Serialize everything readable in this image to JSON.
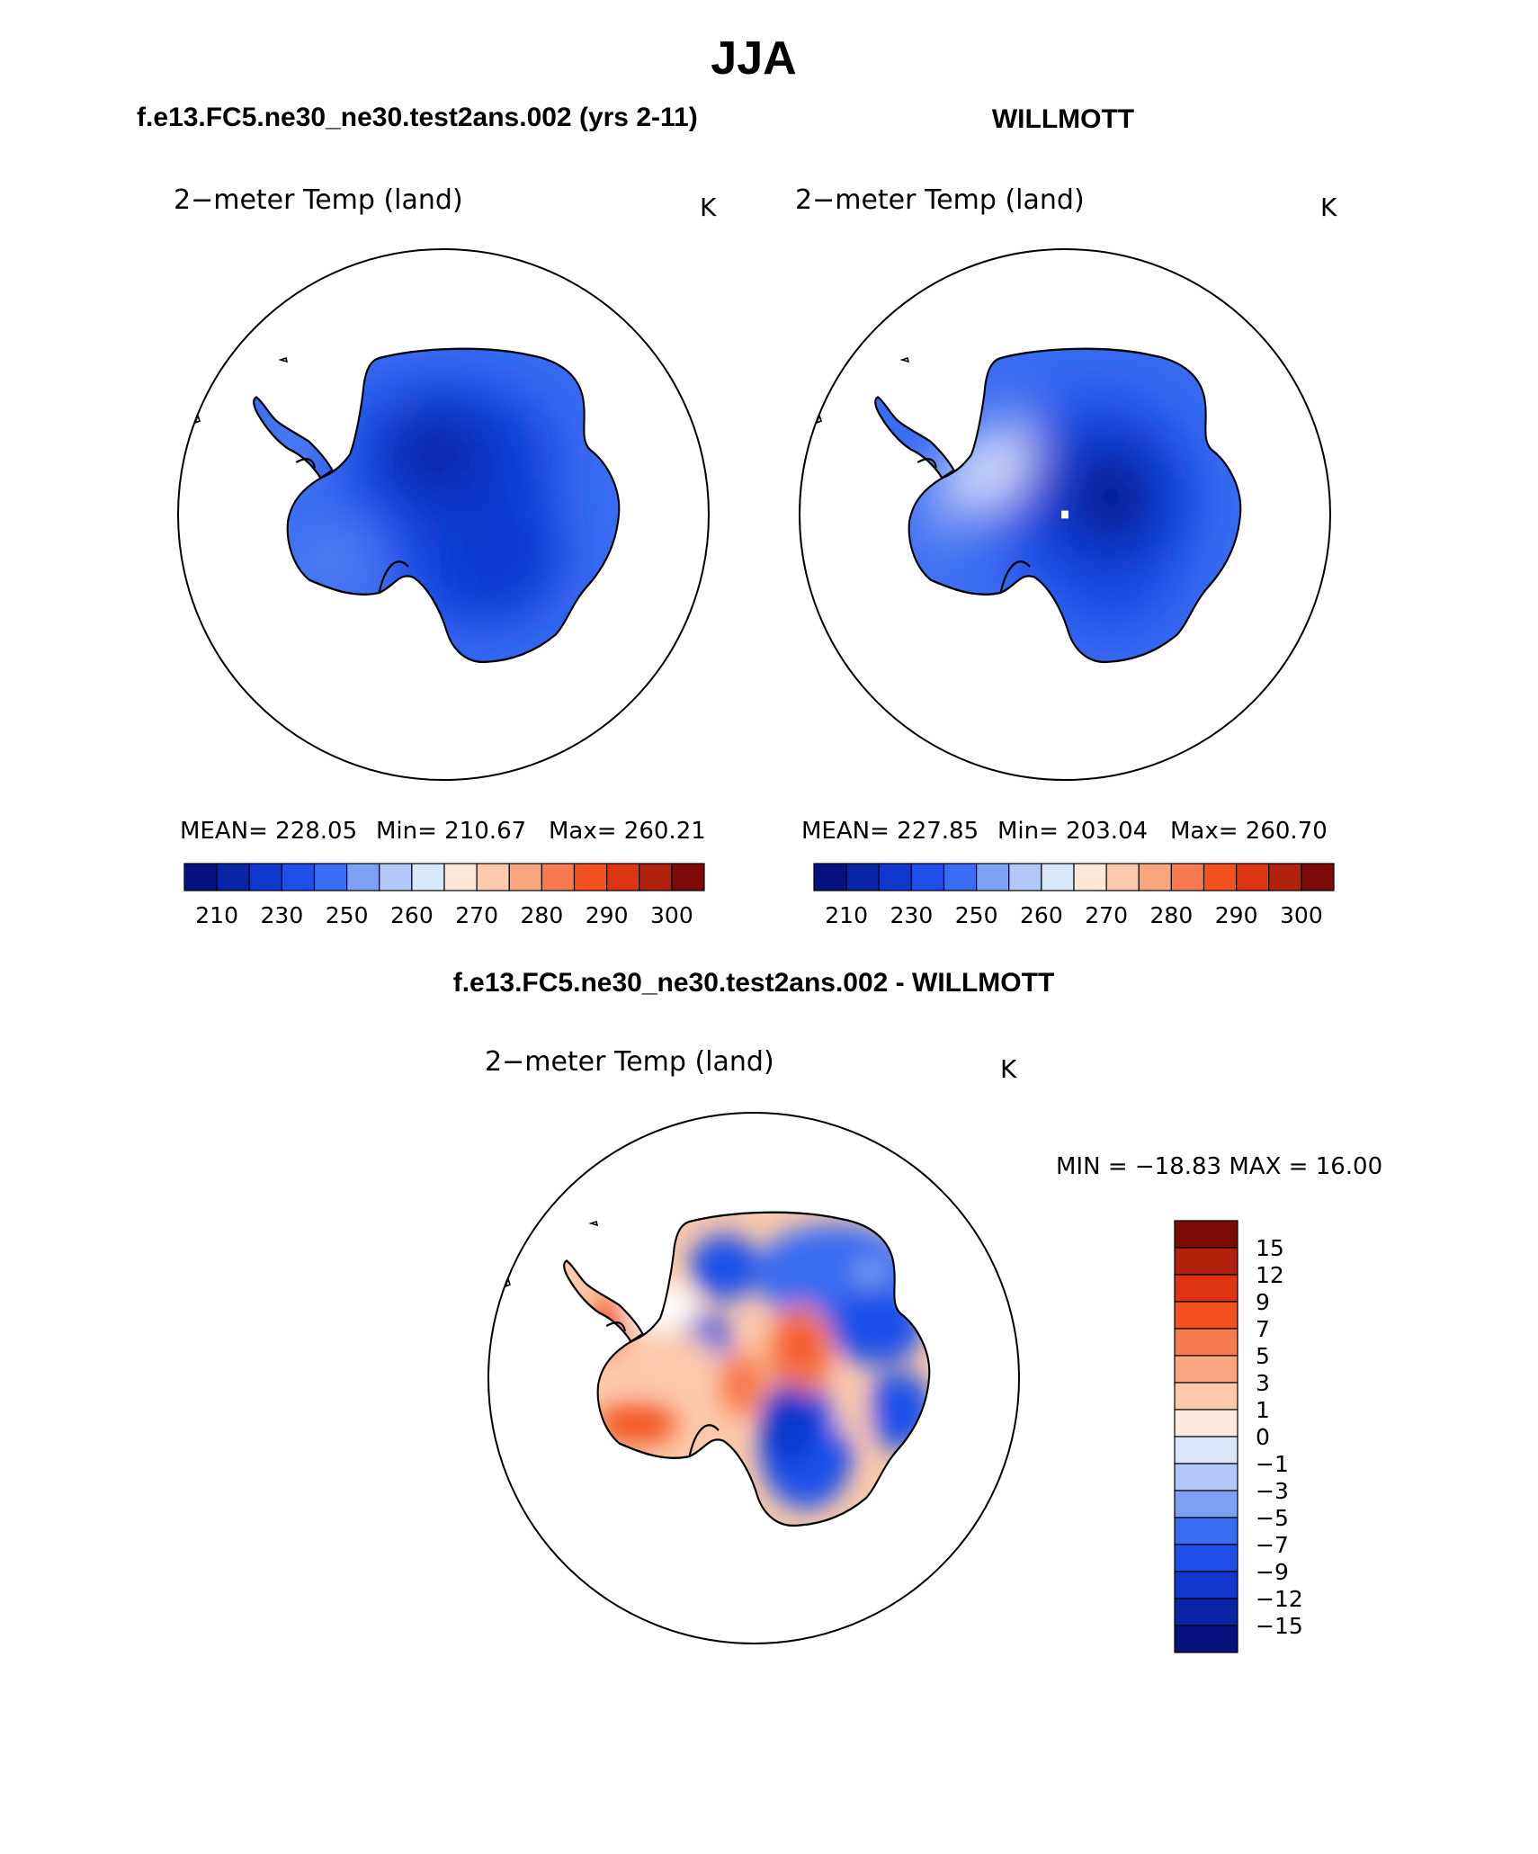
{
  "figure": {
    "season": "JJA",
    "left_header": "f.e13.FC5.ne30_ne30.test2ans.002 (yrs 2-11)",
    "right_header": "WILLMOTT",
    "diff_header": "f.e13.FC5.ne30_ne30.test2ans.002 - WILLMOTT"
  },
  "colors": {
    "abs_palette": [
      "#06137f",
      "#0a24a6",
      "#0f37cc",
      "#1e4fe8",
      "#3a6cf2",
      "#7da0f5",
      "#b2c8f8",
      "#d9e7fb",
      "#fde8d8",
      "#fcc9ac",
      "#f9a57f",
      "#f77b4e",
      "#f3521f",
      "#dd3411",
      "#b3220c",
      "#7e0a08"
    ],
    "diff_palette": [
      "#06137f",
      "#0a24a6",
      "#0f37cc",
      "#1e4fe8",
      "#3a6cf2",
      "#7da0f5",
      "#b2c8f8",
      "#d9e7fb",
      "#fdebdf",
      "#fcc9ac",
      "#f9a57f",
      "#f77b4e",
      "#f3521f",
      "#dd3411",
      "#b3220c",
      "#7e0a08"
    ],
    "land_outline": "#000000"
  },
  "chart_data": [
    {
      "type": "heatmap",
      "panel": "model",
      "title": "2−meter Temp (land)",
      "units": "K",
      "projection": "south-polar-stereographic",
      "stats": {
        "mean_label": "MEAN=  228.05",
        "min_label": "Min=  210.67",
        "max_label": "Max=  260.21"
      },
      "mean": 228.05,
      "min": 210.67,
      "max": 260.21,
      "colorbar_ticks": [
        "210",
        "230",
        "250",
        "260",
        "270",
        "280",
        "290",
        "300"
      ],
      "colorbar_orientation": "horizontal"
    },
    {
      "type": "heatmap",
      "panel": "observations",
      "title": "2−meter Temp (land)",
      "units": "K",
      "projection": "south-polar-stereographic",
      "stats": {
        "mean_label": "MEAN=  227.85",
        "min_label": "Min=  203.04",
        "max_label": "Max=  260.70"
      },
      "mean": 227.85,
      "min": 203.04,
      "max": 260.7,
      "colorbar_ticks": [
        "210",
        "230",
        "250",
        "260",
        "270",
        "280",
        "290",
        "300"
      ],
      "colorbar_orientation": "horizontal"
    },
    {
      "type": "heatmap",
      "panel": "difference",
      "title": "2−meter Temp (land)",
      "units": "K",
      "projection": "south-polar-stereographic",
      "range_label": "MIN = −18.83 MAX =   16.00",
      "min": -18.83,
      "max": 16.0,
      "colorbar_ticks": [
        "15",
        "12",
        "9",
        "7",
        "5",
        "3",
        "1",
        "0",
        "−1",
        "−3",
        "−5",
        "−7",
        "−9",
        "−12",
        "−15"
      ],
      "colorbar_orientation": "vertical"
    }
  ]
}
